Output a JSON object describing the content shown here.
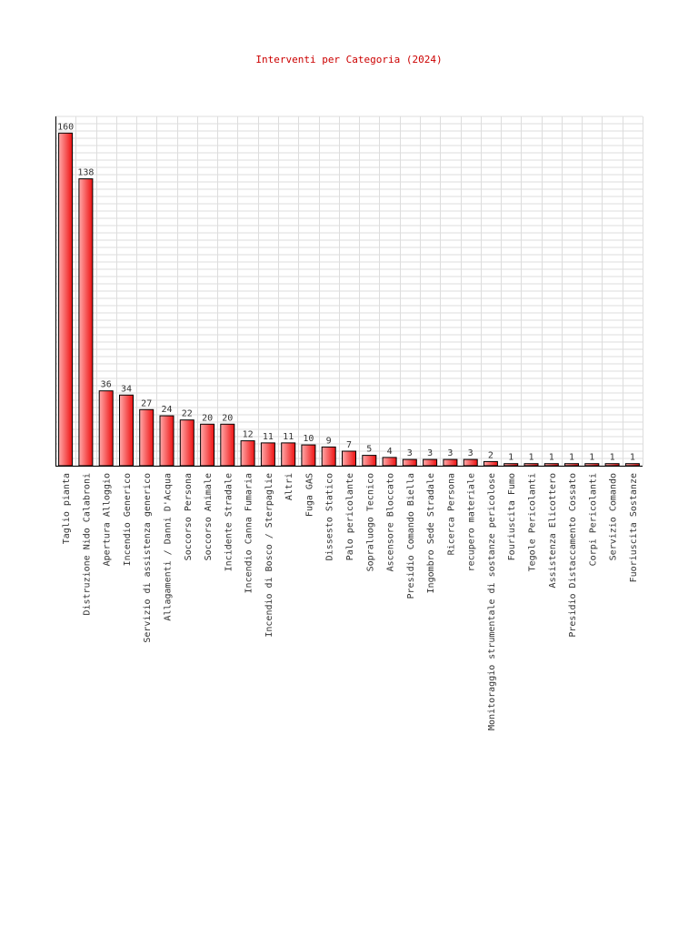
{
  "chart_data": {
    "type": "bar",
    "title": "Interventi per Categoria (2024)",
    "xlabel": "",
    "ylabel": "",
    "ylim": [
      0,
      168
    ],
    "grid": true,
    "bar_color": "#ee1111",
    "bar_highlight": "#ffaaaa",
    "categories": [
      "Taglio pianta",
      "Distruzione Nido Calabroni",
      "Apertura Alloggio",
      "Incendio Generico",
      "Servizio di assistenza generico",
      "Allagamenti / Danni D'Acqua",
      "Soccorso Persona",
      "Soccorso Animale",
      "Incidente Stradale",
      "Incendio Canna Fumaria",
      "Incendio di Bosco / Sterpaglie",
      "Altri",
      "Fuga GAS",
      "Dissesto Statico",
      "Palo pericolante",
      "Sopraluogo Tecnico",
      "Ascensore Bloccato",
      "Presidio Comando Biella",
      "Ingombro Sede Stradale",
      "Ricerca Persona",
      "recupero materiale",
      "Monitoraggio strumentale di sostanze pericolose",
      "Fouriuscita Fumo",
      "Tegole Pericolanti",
      "Assistenza Elicottero",
      "Presidio Distaccamento Cossato",
      "Corpi Pericolanti",
      "Servizio Comando",
      "Fuoriuscita Sostanze"
    ],
    "values": [
      160,
      138,
      36,
      34,
      27,
      24,
      22,
      20,
      20,
      12,
      11,
      11,
      10,
      9,
      7,
      5,
      4,
      3,
      3,
      3,
      3,
      2,
      1,
      1,
      1,
      1,
      1,
      1,
      1
    ]
  }
}
